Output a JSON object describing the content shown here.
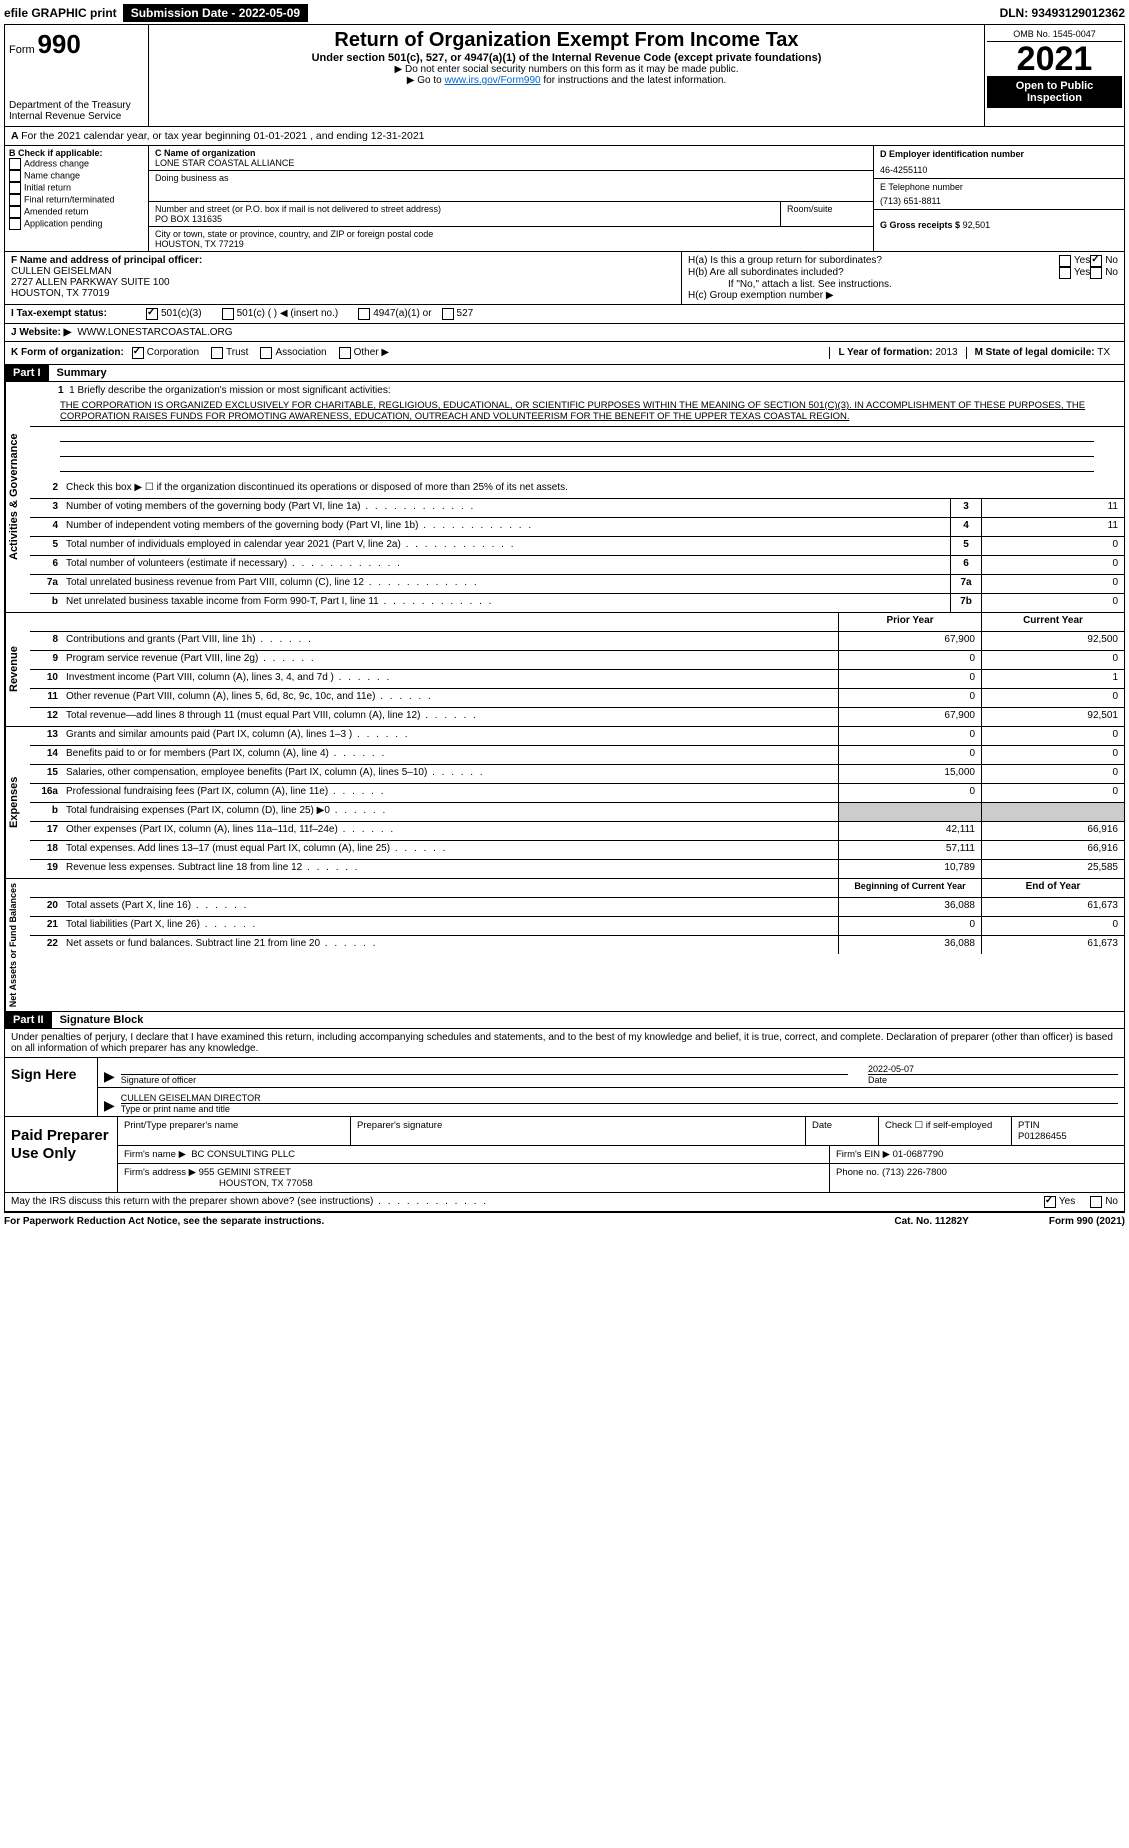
{
  "top": {
    "efile": "efile GRAPHIC print",
    "subdate_label": "Submission Date - 2022-05-09",
    "dln": "DLN: 93493129012362"
  },
  "header": {
    "form_prefix": "Form",
    "form_num": "990",
    "dept": "Department of the Treasury",
    "irs": "Internal Revenue Service",
    "title": "Return of Organization Exempt From Income Tax",
    "subtitle": "Under section 501(c), 527, or 4947(a)(1) of the Internal Revenue Code (except private foundations)",
    "note1": "▶ Do not enter social security numbers on this form as it may be made public.",
    "note2_pre": "▶ Go to ",
    "note2_link": "www.irs.gov/Form990",
    "note2_post": " for instructions and the latest information.",
    "omb": "OMB No. 1545-0047",
    "year": "2021",
    "inspect": "Open to Public Inspection"
  },
  "A": {
    "text": "For the 2021 calendar year, or tax year beginning 01-01-2021    , and ending 12-31-2021"
  },
  "B": {
    "label": "B Check if applicable:",
    "items": [
      "Address change",
      "Name change",
      "Initial return",
      "Final return/terminated",
      "Amended return",
      "Application pending"
    ]
  },
  "C": {
    "name_label": "C Name of organization",
    "name": "LONE STAR COASTAL ALLIANCE",
    "dba_label": "Doing business as",
    "street_label": "Number and street (or P.O. box if mail is not delivered to street address)",
    "room_label": "Room/suite",
    "street": "PO BOX 131635",
    "city_label": "City or town, state or province, country, and ZIP or foreign postal code",
    "city": "HOUSTON, TX  77219"
  },
  "D": {
    "label": "D Employer identification number",
    "value": "46-4255110"
  },
  "E": {
    "label": "E Telephone number",
    "value": "(713) 651-8811"
  },
  "G": {
    "label": "G Gross receipts $",
    "value": "92,501"
  },
  "F": {
    "label": "F  Name and address of principal officer:",
    "name": "CULLEN GEISELMAN",
    "addr1": "2727 ALLEN PARKWAY SUITE 100",
    "addr2": "HOUSTON, TX  77019"
  },
  "H": {
    "a_label": "H(a)  Is this a group return for subordinates?",
    "b_label": "H(b)  Are all subordinates included?",
    "b_note": "If \"No,\" attach a list. See instructions.",
    "c_label": "H(c)  Group exemption number ▶",
    "yes": "Yes",
    "no": "No"
  },
  "I": {
    "label": "I    Tax-exempt status:",
    "opt1": "501(c)(3)",
    "opt2": "501(c) (   ) ◀ (insert no.)",
    "opt3": "4947(a)(1) or",
    "opt4": "527"
  },
  "J": {
    "label": "J    Website: ▶",
    "value": "WWW.LONESTARCOASTAL.ORG"
  },
  "K": {
    "label": "K Form of organization:",
    "opts": [
      "Corporation",
      "Trust",
      "Association",
      "Other ▶"
    ],
    "L_label": "L Year of formation:",
    "L_val": "2013",
    "M_label": "M State of legal domicile:",
    "M_val": "TX"
  },
  "part1": {
    "label": "Part I",
    "title": "Summary",
    "line1_label": "1  Briefly describe the organization's mission or most significant activities:",
    "mission": "THE CORPORATION IS ORGANIZED EXCLUSIVELY FOR CHARITABLE, REGLIGIOUS, EDUCATIONAL, OR SCIENTIFIC PURPOSES WITHIN THE MEANING OF SECTION 501(C)(3). IN ACCOMPLISHMENT OF THESE PURPOSES, THE CORPORATION RAISES FUNDS FOR PROMOTING AWARENESS, EDUCATION, OUTREACH AND VOLUNTEERISM FOR THE BENEFIT OF THE UPPER TEXAS COASTAL REGION.",
    "line2": "Check this box ▶ ☐  if the organization discontinued its operations or disposed of more than 25% of its net assets.",
    "tabs": {
      "gov": "Activities & Governance",
      "rev": "Revenue",
      "exp": "Expenses",
      "net": "Net Assets or Fund Balances"
    },
    "hdr_prior": "Prior Year",
    "hdr_current": "Current Year",
    "hdr_begin": "Beginning of Current Year",
    "hdr_end": "End of Year",
    "lines_gov": [
      {
        "n": "3",
        "d": "Number of voting members of the governing body (Part VI, line 1a)",
        "box": "3",
        "v": "11"
      },
      {
        "n": "4",
        "d": "Number of independent voting members of the governing body (Part VI, line 1b)",
        "box": "4",
        "v": "11"
      },
      {
        "n": "5",
        "d": "Total number of individuals employed in calendar year 2021 (Part V, line 2a)",
        "box": "5",
        "v": "0"
      },
      {
        "n": "6",
        "d": "Total number of volunteers (estimate if necessary)",
        "box": "6",
        "v": "0"
      },
      {
        "n": "7a",
        "d": "Total unrelated business revenue from Part VIII, column (C), line 12",
        "box": "7a",
        "v": "0"
      },
      {
        "n": "b",
        "d": "Net unrelated business taxable income from Form 990-T, Part I, line 11",
        "box": "7b",
        "v": "0"
      }
    ],
    "lines_rev": [
      {
        "n": "8",
        "d": "Contributions and grants (Part VIII, line 1h)",
        "p": "67,900",
        "c": "92,500"
      },
      {
        "n": "9",
        "d": "Program service revenue (Part VIII, line 2g)",
        "p": "0",
        "c": "0"
      },
      {
        "n": "10",
        "d": "Investment income (Part VIII, column (A), lines 3, 4, and 7d )",
        "p": "0",
        "c": "1"
      },
      {
        "n": "11",
        "d": "Other revenue (Part VIII, column (A), lines 5, 6d, 8c, 9c, 10c, and 11e)",
        "p": "0",
        "c": "0"
      },
      {
        "n": "12",
        "d": "Total revenue—add lines 8 through 11 (must equal Part VIII, column (A), line 12)",
        "p": "67,900",
        "c": "92,501"
      }
    ],
    "lines_exp": [
      {
        "n": "13",
        "d": "Grants and similar amounts paid (Part IX, column (A), lines 1–3 )",
        "p": "0",
        "c": "0"
      },
      {
        "n": "14",
        "d": "Benefits paid to or for members (Part IX, column (A), line 4)",
        "p": "0",
        "c": "0"
      },
      {
        "n": "15",
        "d": "Salaries, other compensation, employee benefits (Part IX, column (A), lines 5–10)",
        "p": "15,000",
        "c": "0"
      },
      {
        "n": "16a",
        "d": "Professional fundraising fees (Part IX, column (A), line 11e)",
        "p": "0",
        "c": "0"
      },
      {
        "n": "b",
        "d": "Total fundraising expenses (Part IX, column (D), line 25) ▶0",
        "p": "grey",
        "c": "grey"
      },
      {
        "n": "17",
        "d": "Other expenses (Part IX, column (A), lines 11a–11d, 11f–24e)",
        "p": "42,111",
        "c": "66,916"
      },
      {
        "n": "18",
        "d": "Total expenses. Add lines 13–17 (must equal Part IX, column (A), line 25)",
        "p": "57,111",
        "c": "66,916"
      },
      {
        "n": "19",
        "d": "Revenue less expenses. Subtract line 18 from line 12",
        "p": "10,789",
        "c": "25,585"
      }
    ],
    "lines_net": [
      {
        "n": "20",
        "d": "Total assets (Part X, line 16)",
        "p": "36,088",
        "c": "61,673"
      },
      {
        "n": "21",
        "d": "Total liabilities (Part X, line 26)",
        "p": "0",
        "c": "0"
      },
      {
        "n": "22",
        "d": "Net assets or fund balances. Subtract line 21 from line 20",
        "p": "36,088",
        "c": "61,673"
      }
    ]
  },
  "part2": {
    "label": "Part II",
    "title": "Signature Block",
    "decl": "Under penalties of perjury, I declare that I have examined this return, including accompanying schedules and statements, and to the best of my knowledge and belief, it is true, correct, and complete. Declaration of preparer (other than officer) is based on all information of which preparer has any knowledge.",
    "sign_here": "Sign Here",
    "sig_officer": "Signature of officer",
    "sig_date": "Date",
    "sig_date_val": "2022-05-07",
    "officer_name": "CULLEN GEISELMAN  DIRECTOR",
    "type_name": "Type or print name and title",
    "paid_label": "Paid Preparer Use Only",
    "prep_name_label": "Print/Type preparer's name",
    "prep_sig_label": "Preparer's signature",
    "date_label": "Date",
    "check_self": "Check ☐ if self-employed",
    "ptin_label": "PTIN",
    "ptin": "P01286455",
    "firm_name_label": "Firm's name    ▶",
    "firm_name": "BC CONSULTING PLLC",
    "firm_ein_label": "Firm's EIN ▶",
    "firm_ein": "01-0687790",
    "firm_addr_label": "Firm's address ▶",
    "firm_addr1": "955 GEMINI STREET",
    "firm_addr2": "HOUSTON, TX  77058",
    "phone_label": "Phone no.",
    "phone": "(713) 226-7800",
    "discuss": "May the IRS discuss this return with the preparer shown above? (see instructions)",
    "yes": "Yes",
    "no": "No"
  },
  "footer": {
    "left": "For Paperwork Reduction Act Notice, see the separate instructions.",
    "mid": "Cat. No. 11282Y",
    "right_form": "Form 990 (2021)"
  }
}
